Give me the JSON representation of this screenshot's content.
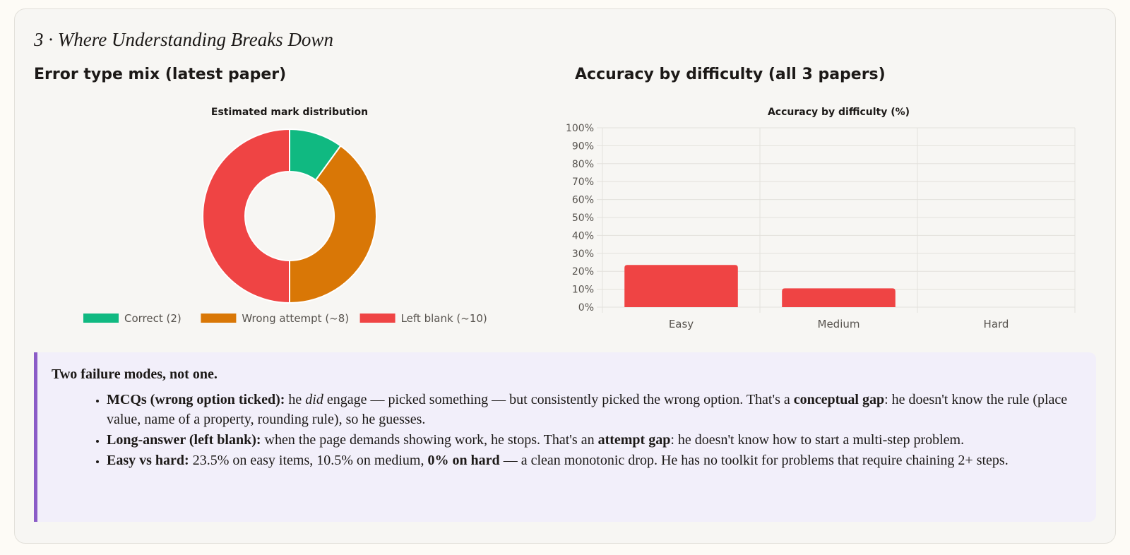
{
  "section": {
    "title": "3 · Where Understanding Breaks Down"
  },
  "panels": {
    "left_title": "Error type mix (latest paper)",
    "right_title": "Accuracy by difficulty (all 3 papers)"
  },
  "chart_data": [
    {
      "type": "pie",
      "variant": "doughnut",
      "title": "Estimated mark distribution",
      "labels": [
        "Correct (2)",
        "Wrong attempt (~8)",
        "Left blank (~10)"
      ],
      "values": [
        2,
        8,
        10
      ],
      "colors": [
        "#10b981",
        "#d97706",
        "#ef4444"
      ],
      "legend": "bottom"
    },
    {
      "type": "bar",
      "title": "Accuracy by difficulty (%)",
      "categories": [
        "Easy",
        "Medium",
        "Hard"
      ],
      "values": [
        23.5,
        10.5,
        0
      ],
      "color": "#ef4444",
      "ylim": [
        0,
        100
      ],
      "ytick_step": 10,
      "ytick_suffix": "%",
      "grid": true,
      "legend": "none"
    }
  ],
  "callout": {
    "heading": "Two failure modes, not one.",
    "items": [
      {
        "lead": "MCQs (wrong option ticked):",
        "t1": " he ",
        "em": "did",
        "t2": " engage — picked something — but consistently picked the wrong option. That's a ",
        "strong": "conceptual gap",
        "t3": ": he doesn't know the rule (place value, name of a property, rounding rule), so he guesses."
      },
      {
        "lead": "Long-answer (left blank):",
        "t1": " when the page demands showing work, he stops. That's an ",
        "strong": "attempt gap",
        "t2": ": he doesn't know how to start a multi-step problem."
      },
      {
        "lead": "Easy vs hard:",
        "t1": " 23.5% on easy items, 10.5% on medium, ",
        "strong": "0% on hard",
        "t2": " — a clean monotonic drop. He has no toolkit for problems that require chaining 2+ steps."
      }
    ]
  }
}
